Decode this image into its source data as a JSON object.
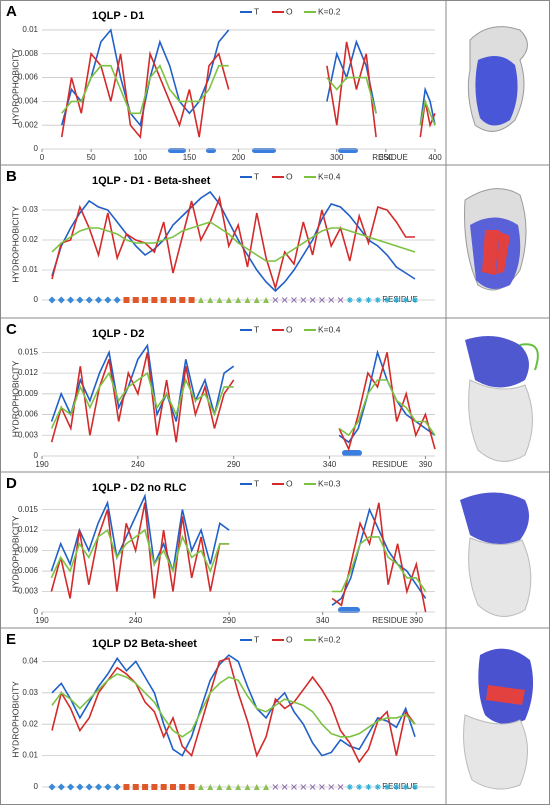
{
  "chart_data": [
    {
      "type": "line",
      "label": "A",
      "title": "1QLP - D1",
      "ylabel": "HYDROPHOBICITY",
      "xlabel": "RESIDUE",
      "x": [
        20,
        30,
        40,
        50,
        60,
        70,
        80,
        90,
        100,
        110,
        120,
        130,
        140,
        150,
        160,
        170,
        180,
        190,
        240,
        290,
        300,
        310,
        320,
        330,
        340,
        365,
        385,
        390,
        395,
        400
      ],
      "xlim": [
        0,
        400
      ],
      "xticks": [
        0,
        50,
        100,
        150,
        200,
        300,
        350,
        400
      ],
      "ylim": [
        0,
        0.0105
      ],
      "yticks": [
        0,
        0.002,
        0.004,
        0.006,
        0.008,
        0.01
      ],
      "grid": true,
      "series": [
        {
          "name": "T",
          "color": "#2060c8",
          "values": [
            0.002,
            0.005,
            0.004,
            0.006,
            0.009,
            0.01,
            0.006,
            0.003,
            0.002,
            0.006,
            0.009,
            0.007,
            0.004,
            0.003,
            0.004,
            0.006,
            0.009,
            0.01,
            null,
            0.004,
            0.008,
            0.006,
            0.009,
            0.007,
            0.003,
            null,
            0.002,
            0.005,
            0.004,
            0.002
          ]
        },
        {
          "name": "O",
          "color": "#d42a2a",
          "values": [
            0.001,
            0.006,
            0.003,
            0.008,
            0.007,
            0.004,
            0.008,
            0.002,
            0.001,
            0.008,
            0.006,
            0.004,
            0.002,
            0.005,
            0.001,
            0.007,
            0.008,
            0.005,
            null,
            0.007,
            0.002,
            0.009,
            0.005,
            0.008,
            0.001,
            null,
            0.001,
            0.004,
            0.002,
            0.003
          ]
        },
        {
          "name": "K=0.2",
          "color": "#7cc242",
          "values": [
            0.003,
            0.004,
            0.004,
            0.006,
            0.007,
            0.007,
            0.005,
            0.003,
            0.003,
            0.006,
            0.007,
            0.005,
            0.004,
            0.004,
            0.004,
            0.005,
            0.007,
            0.007,
            null,
            0.006,
            0.005,
            0.006,
            0.006,
            0.006,
            0.003,
            null,
            0.002,
            0.004,
            0.003,
            0.002
          ]
        }
      ]
    },
    {
      "type": "line",
      "label": "B",
      "title": "1QLP - D1 - Beta-sheet",
      "ylabel": "HYDROPHOBICITY",
      "xlabel": "RESIDUE",
      "ylim": [
        0,
        0.037
      ],
      "yticks": [
        0,
        0.01,
        0.02,
        0.03
      ],
      "grid": true,
      "series": [
        {
          "name": "T",
          "color": "#2060c8",
          "values": [
            0.008,
            0.018,
            0.024,
            0.029,
            0.033,
            0.031,
            0.03,
            0.026,
            0.022,
            0.018,
            0.015,
            0.017,
            0.02,
            0.025,
            0.028,
            0.031,
            0.034,
            0.036,
            0.032,
            0.026,
            0.02,
            0.015,
            0.01,
            0.006,
            0.003,
            0.006,
            0.01,
            0.015,
            0.02,
            0.027,
            0.032,
            0.031,
            0.028,
            0.024,
            0.02,
            0.018,
            0.015,
            0.011,
            0.009,
            0.007
          ]
        },
        {
          "name": "O",
          "color": "#d42a2a",
          "values": [
            0.007,
            0.019,
            0.02,
            0.031,
            0.024,
            0.015,
            0.029,
            0.014,
            0.022,
            0.02,
            0.019,
            0.016,
            0.026,
            0.009,
            0.021,
            0.033,
            0.02,
            0.026,
            0.034,
            0.018,
            0.025,
            0.011,
            0.029,
            0.014,
            0.004,
            0.016,
            0.012,
            0.026,
            0.015,
            0.03,
            0.018,
            0.024,
            0.013,
            0.028,
            0.019,
            0.031,
            0.03,
            0.026,
            0.021,
            0.021
          ]
        },
        {
          "name": "K=0.4",
          "color": "#7cc242",
          "values": [
            0.016,
            0.019,
            0.021,
            0.023,
            0.024,
            0.024,
            0.023,
            0.022,
            0.02,
            0.019,
            0.019,
            0.019,
            0.02,
            0.021,
            0.023,
            0.024,
            0.025,
            0.026,
            0.024,
            0.022,
            0.019,
            0.017,
            0.015,
            0.013,
            0.013,
            0.015,
            0.017,
            0.019,
            0.021,
            0.023,
            0.024,
            0.024,
            0.023,
            0.022,
            0.021,
            0.02,
            0.019,
            0.018,
            0.017,
            0.016
          ]
        }
      ]
    },
    {
      "type": "line",
      "label": "C",
      "title": "1QLP - D2",
      "ylabel": "HYDROPHOBICITY",
      "xlabel": "RESIDUE",
      "x": [
        195,
        200,
        205,
        210,
        215,
        220,
        225,
        230,
        235,
        240,
        245,
        250,
        255,
        260,
        265,
        270,
        275,
        280,
        285,
        290,
        320,
        345,
        350,
        355,
        360,
        365,
        370,
        375,
        380,
        385,
        390,
        395
      ],
      "xlim": [
        190,
        395
      ],
      "xticks": [
        190,
        240,
        290,
        340,
        390
      ],
      "ylim": [
        0,
        0.0165
      ],
      "yticks": [
        0,
        0.003,
        0.006,
        0.009,
        0.012,
        0.015
      ],
      "grid": true,
      "series": [
        {
          "name": "T",
          "color": "#2060c8",
          "values": [
            0.005,
            0.009,
            0.006,
            0.011,
            0.008,
            0.012,
            0.015,
            0.007,
            0.01,
            0.014,
            0.016,
            0.006,
            0.009,
            0.005,
            0.014,
            0.008,
            0.011,
            0.006,
            0.012,
            0.013,
            null,
            0.003,
            0.002,
            0.004,
            0.009,
            0.015,
            0.011,
            0.008,
            0.006,
            0.005,
            0.004,
            0.003
          ]
        },
        {
          "name": "O",
          "color": "#d42a2a",
          "values": [
            0.002,
            0.007,
            0.004,
            0.013,
            0.003,
            0.01,
            0.014,
            0.005,
            0.012,
            0.009,
            0.015,
            0.003,
            0.011,
            0.002,
            0.013,
            0.006,
            0.01,
            0.004,
            0.009,
            0.011,
            null,
            0.004,
            0.001,
            0.006,
            0.012,
            0.01,
            0.015,
            0.005,
            0.009,
            0.003,
            0.006,
            0.001
          ]
        },
        {
          "name": "K=0.4",
          "color": "#7cc242",
          "values": [
            0.004,
            0.007,
            0.006,
            0.01,
            0.007,
            0.01,
            0.012,
            0.008,
            0.01,
            0.011,
            0.012,
            0.007,
            0.009,
            0.006,
            0.011,
            0.008,
            0.009,
            0.006,
            0.01,
            0.01,
            null,
            0.004,
            0.003,
            0.005,
            0.009,
            0.011,
            0.011,
            0.008,
            0.007,
            0.005,
            0.005,
            0.003
          ]
        }
      ]
    },
    {
      "type": "line",
      "label": "D",
      "title": "1QLP - D2 no RLC",
      "ylabel": "HYDROPHOBICITY",
      "xlabel": "RESIDUE",
      "x": [
        195,
        200,
        205,
        210,
        215,
        220,
        225,
        230,
        235,
        240,
        245,
        250,
        255,
        260,
        265,
        270,
        275,
        280,
        285,
        290,
        320,
        345,
        350,
        355,
        360,
        365,
        370,
        375,
        380,
        385,
        390,
        395
      ],
      "xlim": [
        190,
        400
      ],
      "xticks": [
        190,
        240,
        290,
        340,
        390
      ],
      "ylim": [
        0,
        0.017
      ],
      "yticks": [
        0,
        0.003,
        0.006,
        0.009,
        0.012,
        0.015
      ],
      "grid": true,
      "series": [
        {
          "name": "T",
          "color": "#2060c8",
          "values": [
            0.006,
            0.01,
            0.007,
            0.012,
            0.009,
            0.013,
            0.016,
            0.008,
            0.011,
            0.014,
            0.017,
            0.007,
            0.01,
            0.006,
            0.015,
            0.009,
            0.012,
            0.007,
            0.013,
            0.012,
            null,
            0.001,
            0.002,
            0.005,
            0.01,
            0.015,
            0.012,
            0.009,
            0.007,
            0.006,
            0.004,
            0.002
          ]
        },
        {
          "name": "O",
          "color": "#d42a2a",
          "values": [
            0.003,
            0.008,
            0.002,
            0.012,
            0.004,
            0.011,
            0.015,
            0.003,
            0.013,
            0.009,
            0.016,
            0.002,
            0.012,
            0.003,
            0.014,
            0.005,
            0.011,
            0.003,
            0.01,
            0.01,
            null,
            0.002,
            0.001,
            0.007,
            0.013,
            0.01,
            0.016,
            0.004,
            0.01,
            0.003,
            0.007,
            0
          ]
        },
        {
          "name": "K=0.3",
          "color": "#7cc242",
          "values": [
            0.005,
            0.008,
            0.006,
            0.01,
            0.008,
            0.011,
            0.012,
            0.008,
            0.01,
            0.011,
            0.012,
            0.007,
            0.009,
            0.006,
            0.011,
            0.008,
            0.009,
            0.006,
            0.01,
            0.01,
            null,
            0.003,
            0.003,
            0.006,
            0.01,
            0.011,
            0.011,
            0.008,
            0.007,
            0.005,
            0.005,
            0.003
          ]
        }
      ]
    },
    {
      "type": "line",
      "label": "E",
      "title": "1QLP D2 Beta-sheet",
      "ylabel": "HYDROPHOBICITY",
      "xlabel": "RESIDUE",
      "ylim": [
        0,
        0.043
      ],
      "yticks": [
        0,
        0.01,
        0.02,
        0.03,
        0.04
      ],
      "grid": true,
      "series": [
        {
          "name": "T",
          "color": "#2060c8",
          "values": [
            0.03,
            0.033,
            0.028,
            0.022,
            0.027,
            0.032,
            0.036,
            0.041,
            0.037,
            0.04,
            0.035,
            0.03,
            0.02,
            0.012,
            0.01,
            0.016,
            0.025,
            0.034,
            0.039,
            0.042,
            0.04,
            0.032,
            0.025,
            0.022,
            0.027,
            0.03,
            0.024,
            0.02,
            0.014,
            0.01,
            0.011,
            0.015,
            0.013,
            0.012,
            0.017,
            0.022,
            0.021,
            0.019,
            0.025,
            0.016
          ]
        },
        {
          "name": "O",
          "color": "#d42a2a",
          "values": [
            0.018,
            0.03,
            0.025,
            0.018,
            0.022,
            0.03,
            0.034,
            0.038,
            0.036,
            0.033,
            0.027,
            0.024,
            0.016,
            0.022,
            0.013,
            0.01,
            0.02,
            0.03,
            0.04,
            0.041,
            0.03,
            0.021,
            0.01,
            0.016,
            0.028,
            0.025,
            0.027,
            0.031,
            0.035,
            0.031,
            0.026,
            0.018,
            0.014,
            0.008,
            0.012,
            0.021,
            0.024,
            0.01,
            0.024,
            0.02
          ]
        },
        {
          "name": "K=0.2",
          "color": "#7cc242",
          "values": [
            0.026,
            0.03,
            0.028,
            0.025,
            0.028,
            0.031,
            0.034,
            0.036,
            0.035,
            0.033,
            0.03,
            0.027,
            0.022,
            0.018,
            0.016,
            0.018,
            0.024,
            0.03,
            0.033,
            0.035,
            0.034,
            0.029,
            0.025,
            0.024,
            0.026,
            0.028,
            0.027,
            0.026,
            0.024,
            0.02,
            0.017,
            0.016,
            0.016,
            0.017,
            0.019,
            0.021,
            0.022,
            0.022,
            0.023,
            0.02
          ]
        }
      ]
    }
  ]
}
